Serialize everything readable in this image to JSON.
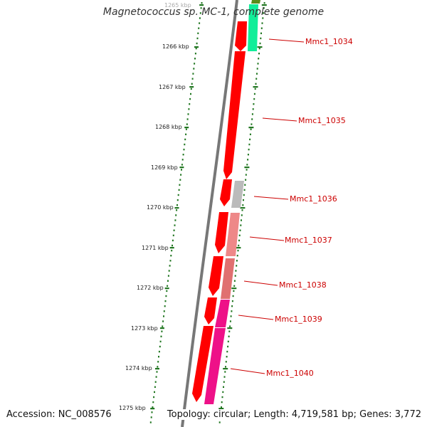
{
  "title": "Magnetococcus sp. MC-1, complete genome",
  "footer": {
    "accession_label": "Accession:",
    "accession": "NC_008576",
    "summary": "Topology: circular; Length: 4,719,581 bp; Genes: 3,772"
  },
  "axis_labels": [
    "1265 kbp",
    "1266 kbp",
    "1267 kbp",
    "1268 kbp",
    "1269 kbp",
    "1270 kbp",
    "1271 kbp",
    "1272 kbp",
    "1273 kbp",
    "1274 kbp",
    "1275 kbp"
  ],
  "gene_labels": [
    "Mmc1_1034",
    "Mmc1_1035",
    "Mmc1_1036",
    "Mmc1_1037",
    "Mmc1_1038",
    "Mmc1_1039",
    "Mmc1_1040"
  ],
  "colors": {
    "backbone": "#777777",
    "forward_strand": "#ff0000",
    "tick_marks": "#227722",
    "label_text": "#cc0000",
    "cog_green_dark": "#5a8c1a",
    "cog_aqua": "#11ee99",
    "cog_grey": "#bbbbbb",
    "cog_salmon": "#ee8888",
    "cog_pink": "#ee1188"
  }
}
